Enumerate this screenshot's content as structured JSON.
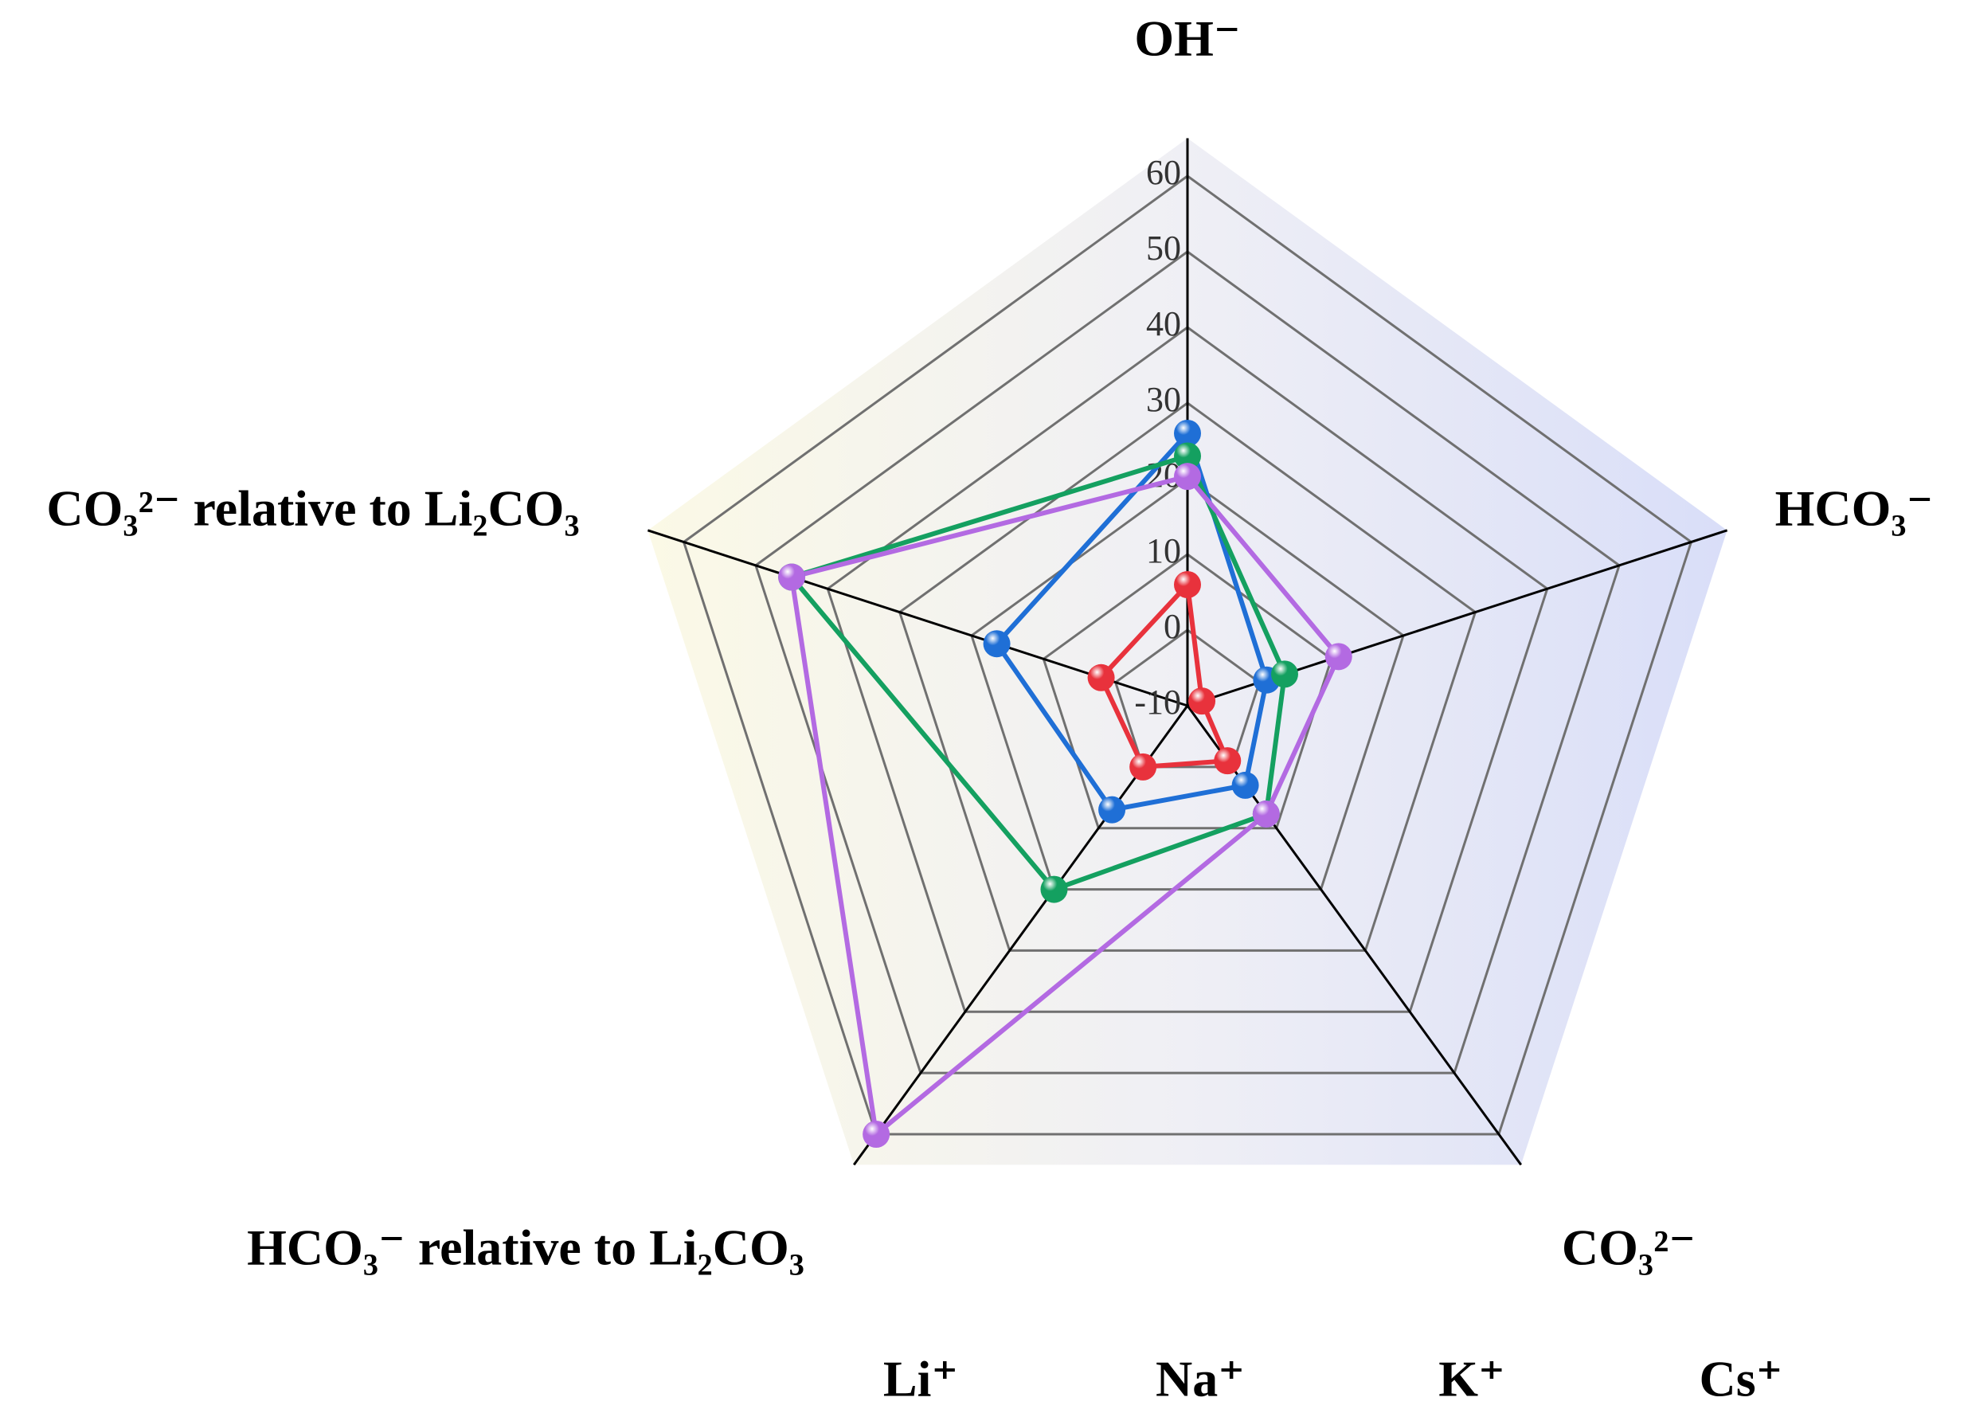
{
  "chart_data": {
    "type": "radar",
    "axes": [
      "OH⁻",
      "HCO₃⁻",
      "CO₃²⁻",
      "HCO₃⁻ relative to Li₂CO₃",
      "CO₃²⁻ relative to Li₂CO₃"
    ],
    "ylim": [
      -10,
      65
    ],
    "yticks": [
      -10,
      0,
      10,
      20,
      30,
      40,
      50,
      60
    ],
    "grid": true,
    "series": [
      {
        "name": "Li⁺",
        "color": "#e8323c",
        "values": [
          6,
          -8,
          -1,
          0,
          2
        ]
      },
      {
        "name": "Na⁺",
        "color": "#1f6fd6",
        "values": [
          26,
          1,
          3,
          7,
          16.5
        ]
      },
      {
        "name": "K⁺",
        "color": "#14a060",
        "values": [
          23,
          3.5,
          7.7,
          20,
          45
        ]
      },
      {
        "name": "Cs⁺",
        "color": "#b36ae2",
        "values": [
          20.3,
          11,
          7.7,
          60,
          45
        ]
      }
    ]
  }
}
